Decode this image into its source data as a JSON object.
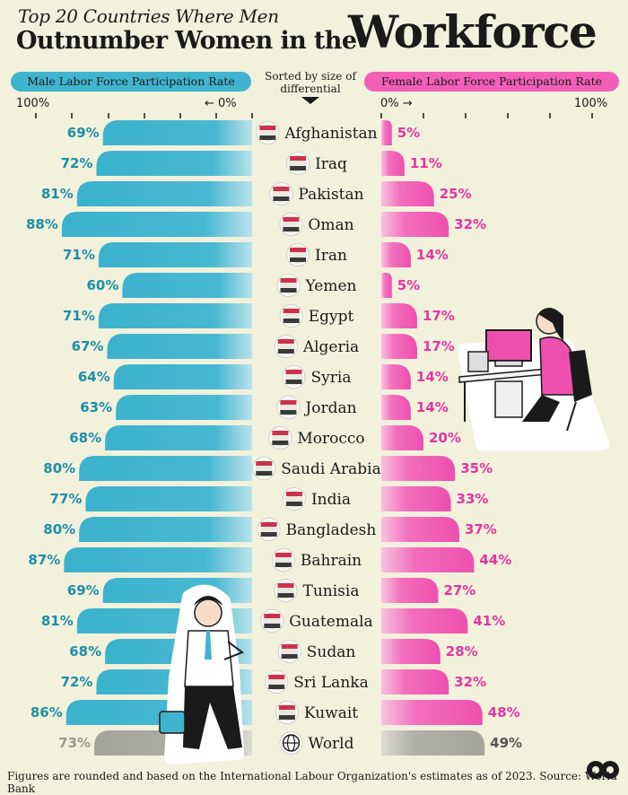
{
  "header": {
    "title_line1": "Top 20 Countries Where Men",
    "title_line2": "Outnumber Women in the",
    "title_word": "Workforce"
  },
  "legend": {
    "male_label": "Male Labor Force Participation Rate",
    "female_label": "Female Labor Force Participation Rate",
    "sorted_line1": "Sorted by size of",
    "sorted_line2": "differential"
  },
  "axis": {
    "male_max": "100%",
    "male_zero": "← 0%",
    "female_zero": "0% →",
    "female_max": "100%"
  },
  "footer": {
    "note": "Figures are rounded and based on the International Labour Organization's estimates as of 2023. Source: World Bank"
  },
  "colors": {
    "male": "#40b4cf",
    "female": "#f35fb8",
    "world": "#a5a59a",
    "background": "#f2f1dc"
  },
  "chart_data": {
    "type": "bar",
    "orientation": "horizontal-diverging",
    "xlim": [
      0,
      100
    ],
    "unit": "%",
    "categories": [
      "Afghanistan",
      "Iraq",
      "Pakistan",
      "Oman",
      "Iran",
      "Yemen",
      "Egypt",
      "Algeria",
      "Syria",
      "Jordan",
      "Morocco",
      "Saudi Arabia",
      "India",
      "Bangladesh",
      "Bahrain",
      "Tunisia",
      "Guatemala",
      "Sudan",
      "Sri Lanka",
      "Kuwait",
      "World"
    ],
    "series": [
      {
        "name": "Male Labor Force Participation Rate",
        "values": [
          69,
          72,
          81,
          88,
          71,
          60,
          71,
          67,
          64,
          63,
          68,
          80,
          77,
          80,
          87,
          69,
          81,
          68,
          72,
          86,
          73
        ]
      },
      {
        "name": "Female Labor Force Participation Rate",
        "values": [
          5,
          11,
          25,
          32,
          14,
          5,
          17,
          17,
          14,
          14,
          20,
          35,
          33,
          37,
          44,
          27,
          41,
          28,
          32,
          48,
          49
        ]
      }
    ],
    "flag_icons": [
      "afghanistan-flag-icon",
      "iraq-flag-icon",
      "pakistan-flag-icon",
      "oman-flag-icon",
      "iran-flag-icon",
      "yemen-flag-icon",
      "egypt-flag-icon",
      "algeria-flag-icon",
      "syria-flag-icon",
      "jordan-flag-icon",
      "morocco-flag-icon",
      "saudi-arabia-flag-icon",
      "india-flag-icon",
      "bangladesh-flag-icon",
      "bahrain-flag-icon",
      "tunisia-flag-icon",
      "guatemala-flag-icon",
      "sudan-flag-icon",
      "sri-lanka-flag-icon",
      "kuwait-flag-icon",
      "globe-icon"
    ]
  }
}
